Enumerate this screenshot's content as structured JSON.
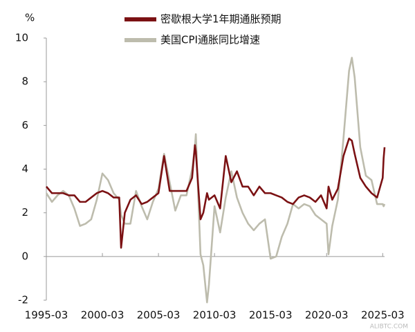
{
  "chart_data": {
    "type": "line",
    "y_label": "%",
    "x": [
      "1995-03",
      "1995-09",
      "1996-03",
      "1996-09",
      "1997-03",
      "1997-09",
      "1998-03",
      "1998-09",
      "1999-03",
      "1999-09",
      "2000-03",
      "2000-09",
      "2001-03",
      "2001-09",
      "2001-11",
      "2002-03",
      "2002-09",
      "2003-03",
      "2003-09",
      "2004-03",
      "2004-09",
      "2005-03",
      "2005-09",
      "2006-03",
      "2006-09",
      "2007-03",
      "2007-09",
      "2008-03",
      "2008-06",
      "2008-07",
      "2008-12",
      "2009-03",
      "2009-07",
      "2009-09",
      "2010-03",
      "2010-09",
      "2011-03",
      "2011-09",
      "2012-03",
      "2012-09",
      "2013-03",
      "2013-09",
      "2014-03",
      "2014-09",
      "2015-03",
      "2015-09",
      "2016-03",
      "2016-09",
      "2017-03",
      "2017-09",
      "2018-03",
      "2018-09",
      "2019-03",
      "2019-09",
      "2020-03",
      "2020-05",
      "2020-09",
      "2021-03",
      "2021-09",
      "2022-03",
      "2022-06",
      "2022-09",
      "2023-03",
      "2023-09",
      "2024-03",
      "2024-09",
      "2025-03",
      "2025-04",
      "2025-05"
    ],
    "series": [
      {
        "name": "密歇根大学1年期通胀预期",
        "color": "#7b1113",
        "values": [
          3.2,
          2.9,
          2.9,
          2.9,
          2.8,
          2.8,
          2.5,
          2.5,
          2.7,
          2.9,
          3.0,
          2.9,
          2.7,
          2.7,
          0.4,
          2.0,
          2.6,
          2.8,
          2.4,
          2.5,
          2.7,
          2.9,
          4.6,
          3.0,
          3.0,
          3.0,
          3.0,
          3.6,
          5.1,
          4.8,
          1.7,
          2.0,
          2.9,
          2.6,
          2.8,
          2.2,
          4.6,
          3.4,
          3.9,
          3.2,
          3.2,
          2.8,
          3.2,
          2.9,
          2.9,
          2.8,
          2.7,
          2.5,
          2.4,
          2.7,
          2.8,
          2.7,
          2.5,
          2.8,
          2.2,
          3.2,
          2.6,
          3.1,
          4.6,
          5.4,
          5.3,
          4.7,
          3.6,
          3.2,
          2.9,
          2.7,
          3.6,
          4.5,
          5.0
        ]
      },
      {
        "name": "美国CPI通胀同比增速",
        "color": "#bdbcad",
        "values": [
          2.9,
          2.5,
          2.8,
          3.0,
          2.8,
          2.2,
          1.4,
          1.5,
          1.7,
          2.6,
          3.8,
          3.5,
          2.9,
          2.6,
          1.9,
          1.5,
          1.5,
          3.0,
          2.3,
          1.7,
          2.5,
          3.1,
          4.7,
          3.4,
          2.1,
          2.8,
          2.8,
          4.0,
          5.0,
          5.6,
          0.1,
          -0.4,
          -2.1,
          -1.3,
          2.3,
          1.1,
          2.7,
          3.9,
          2.7,
          2.0,
          1.5,
          1.2,
          1.5,
          1.7,
          -0.1,
          0.0,
          0.9,
          1.5,
          2.4,
          2.2,
          2.4,
          2.3,
          1.9,
          1.7,
          1.5,
          0.1,
          1.4,
          2.6,
          5.4,
          8.5,
          9.1,
          8.2,
          5.0,
          3.7,
          3.5,
          2.4,
          2.4,
          2.3,
          2.4
        ]
      }
    ],
    "xlim": [
      "1995-03",
      "2025-05"
    ],
    "xticks": [
      "1995-03",
      "2000-03",
      "2005-03",
      "2010-03",
      "2015-03",
      "2020-03",
      "2025-03"
    ],
    "ylim": [
      -2,
      10
    ],
    "yticks": [
      -2,
      0,
      2,
      4,
      6,
      8,
      10
    ],
    "legend": "top",
    "watermark": "ALIBTC.COM"
  }
}
